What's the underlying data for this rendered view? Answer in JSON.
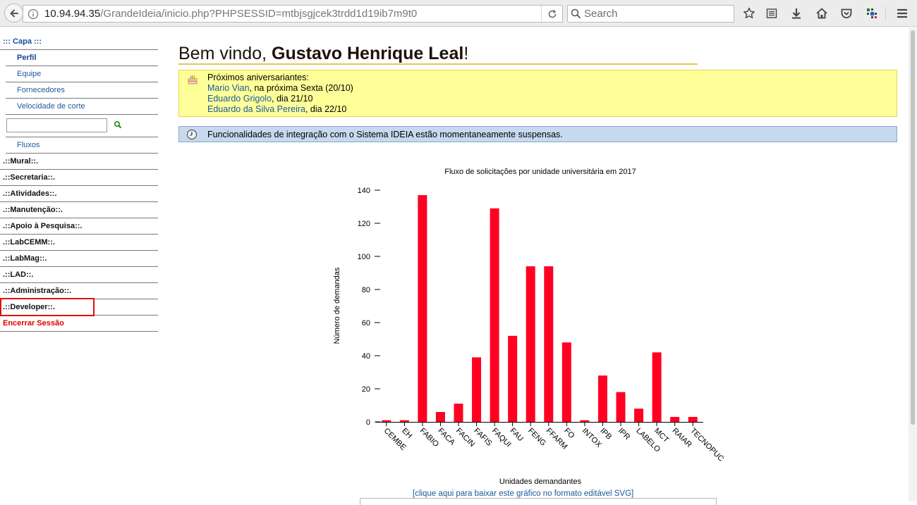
{
  "browser": {
    "url_host": "10.94.94.35",
    "url_path": "/GrandeIdeia/inicio.php?PHPSESSID=mtbjsgjcek3trdd1d19ib7m9t0",
    "search_placeholder": "Search"
  },
  "sidebar": {
    "capa": "::: Capa :::",
    "subitems": [
      "Perfil",
      "Equipe",
      "Fornecedores",
      "Velocidade de corte"
    ],
    "search_value": "",
    "fluxos": "Fluxos",
    "sections": [
      ".::Mural::.",
      ".::Secretaria::.",
      ".::Atividades::.",
      ".::Manutenção::.",
      ".::Apoio à Pesquisa::.",
      ".::LabCEMM::.",
      ".::LabMag::.",
      ".::LAD::.",
      ".::Administração::.",
      ".::Developer::."
    ],
    "logout": "Encerrar Sessão"
  },
  "welcome": {
    "prefix": "Bem vindo, ",
    "name": "Gustavo Henrique Leal",
    "suffix": "!"
  },
  "birthdays": {
    "title": "Próximos aniversariantes:",
    "entries": [
      {
        "name": "Mario Vian",
        "when": ", na próxima Sexta (20/10)"
      },
      {
        "name": "Eduardo Grigolo",
        "when": ", dia 21/10"
      },
      {
        "name": "Eduardo da Silva Pereira",
        "when": ", dia 22/10"
      }
    ]
  },
  "notice": "Funcionalidades de integração com o Sistema IDEIA estão momentaneamente suspensas.",
  "svg_link": "[clique aqui para baixar este gráfico no formato editável SVG]",
  "colors": {
    "bar": "#ff0022",
    "highlight": "#e01010",
    "notice_bg": "#c6d9ee",
    "birthday_bg": "#ffff99"
  },
  "chart_data": {
    "type": "bar",
    "title": "Fluxo de solicitações por unidade universitária em 2017",
    "xlabel": "Unidades demandantes",
    "ylabel": "Número de demandas",
    "ylim": [
      0,
      140
    ],
    "yticks": [
      0,
      20,
      40,
      60,
      80,
      100,
      120,
      140
    ],
    "categories": [
      "CEMBE",
      "EH",
      "FABIO",
      "FACA",
      "FACIN",
      "FAFIS",
      "FAQUI",
      "FAU",
      "FENG",
      "FFARM",
      "FO",
      "INTOX",
      "IPB",
      "IPR",
      "LABELO",
      "MCT",
      "RAIAR",
      "TECNOPUC"
    ],
    "values": [
      1,
      1,
      137,
      6,
      11,
      39,
      129,
      52,
      94,
      94,
      48,
      1,
      28,
      18,
      8,
      42,
      3,
      3
    ]
  }
}
